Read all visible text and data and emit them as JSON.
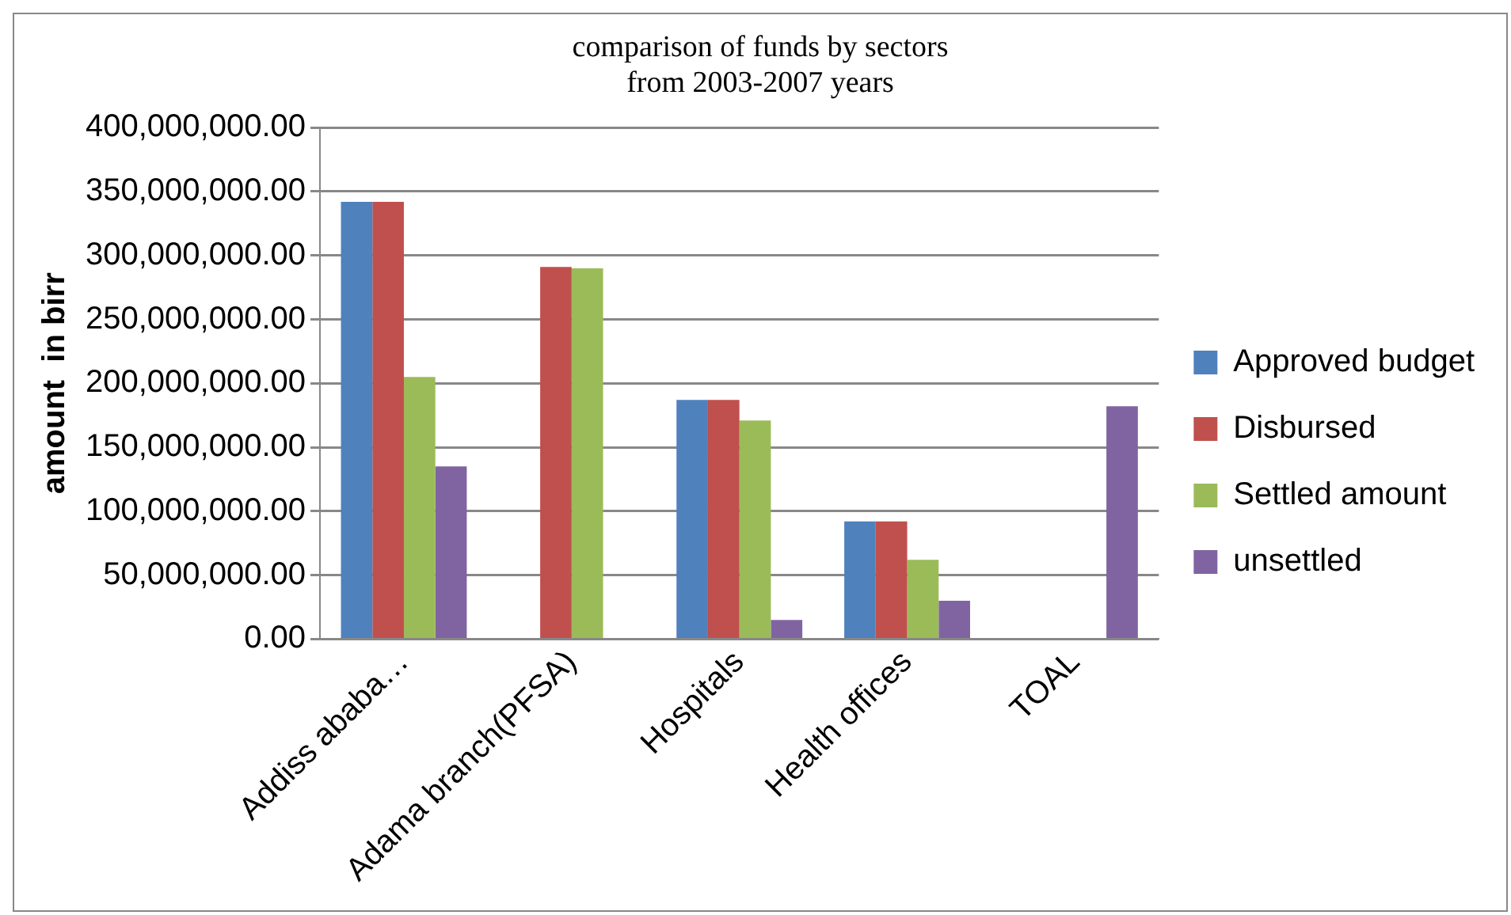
{
  "chart_data": {
    "type": "bar",
    "title": [
      "comparison of funds by sectors",
      "from 2003-2007 years"
    ],
    "ylabel": "amount  in birr",
    "categories": [
      "Addiss ababa…",
      "Adama branch(PFSA)",
      "Hospitals",
      "Health offices",
      "TOAL"
    ],
    "series": [
      {
        "name": "Approved budget",
        "color": "#4f81bd",
        "values": [
          342000000,
          null,
          187000000,
          92000000,
          null
        ]
      },
      {
        "name": "Disbursed",
        "color": "#c0504d",
        "values": [
          342000000,
          291000000,
          187000000,
          92000000,
          null
        ]
      },
      {
        "name": "Settled amount",
        "color": "#9bbb59",
        "values": [
          205000000,
          290000000,
          171000000,
          62000000,
          null
        ]
      },
      {
        "name": "unsettled",
        "color": "#8064a2",
        "values": [
          135000000,
          null,
          15000000,
          30000000,
          182000000
        ]
      }
    ],
    "ylim": [
      0,
      400000000
    ],
    "yticks": [
      {
        "value": 0,
        "label": "0.00"
      },
      {
        "value": 50000000,
        "label": "50,000,000.00"
      },
      {
        "value": 100000000,
        "label": "100,000,000.00"
      },
      {
        "value": 150000000,
        "label": "150,000,000.00"
      },
      {
        "value": 200000000,
        "label": "200,000,000.00"
      },
      {
        "value": 250000000,
        "label": "250,000,000.00"
      },
      {
        "value": 300000000,
        "label": "300,000,000.00"
      },
      {
        "value": 350000000,
        "label": "350,000,000.00"
      },
      {
        "value": 400000000,
        "label": "400,000,000.00"
      }
    ],
    "grid": "y",
    "legend": "right"
  }
}
